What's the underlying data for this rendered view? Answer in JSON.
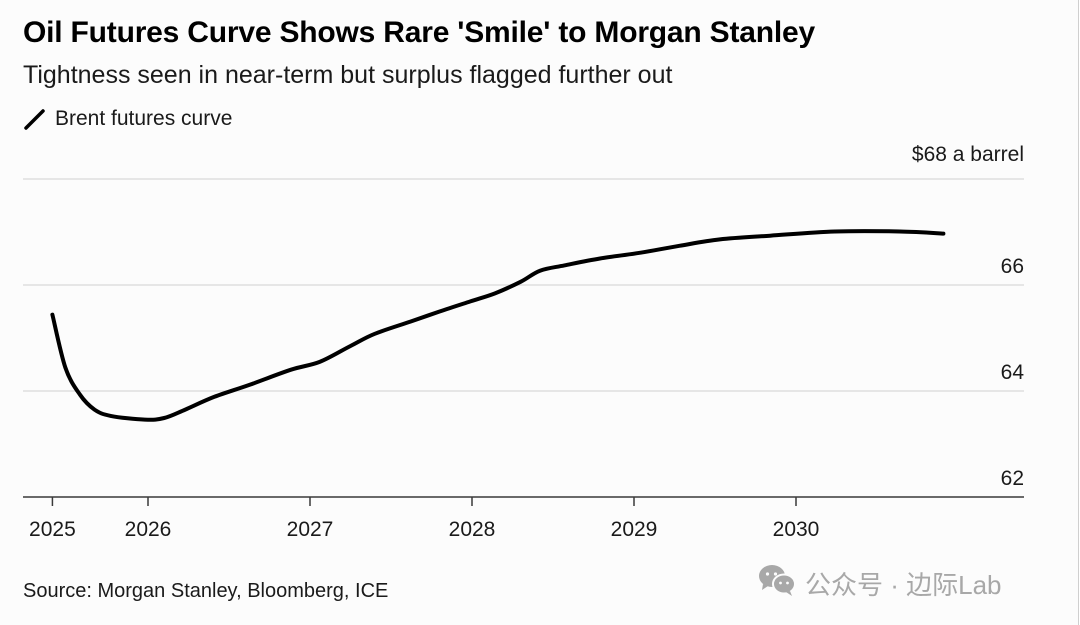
{
  "header": {
    "title": "Oil Futures Curve Shows Rare 'Smile' to Morgan Stanley",
    "subtitle": "Tightness seen in near-term but surplus flagged further out"
  },
  "legend": {
    "items": [
      {
        "label": "Brent futures curve",
        "icon": "line-swatch-icon",
        "color": "#000000"
      }
    ]
  },
  "footer": {
    "source": "Source: Morgan Stanley, Bloomberg, ICE"
  },
  "watermark": {
    "icon": "wechat-icon",
    "text": "公众号 · 边际Lab"
  },
  "chart_data": {
    "type": "line",
    "title": "Oil Futures Curve Shows Rare 'Smile' to Morgan Stanley",
    "subtitle": "Tightness seen in near-term but surplus flagged further out",
    "xlabel": "",
    "ylabel": "$ a barrel",
    "y_unit_label": "$68 a barrel",
    "ylim": [
      62,
      68
    ],
    "yticks": [
      62,
      64,
      66,
      68
    ],
    "ytick_labels": [
      "62",
      "64",
      "66",
      "$68 a barrel"
    ],
    "y_axis_side": "right",
    "xlim": [
      2025.42,
      2031.25
    ],
    "xticks": [
      2025.41,
      2026,
      2027,
      2028,
      2029,
      2030
    ],
    "xtick_labels": [
      "2025",
      "2026",
      "2027",
      "2028",
      "2029",
      "2030"
    ],
    "grid": "horizontal",
    "legend_position": "top-left",
    "source": "Source: Morgan Stanley, Bloomberg, ICE",
    "series": [
      {
        "name": "Brent futures curve",
        "color": "#000000",
        "x": [
          2025.41,
          2025.49,
          2025.58,
          2025.67,
          2025.77,
          2025.98,
          2026.1,
          2026.23,
          2026.41,
          2026.63,
          2026.88,
          2027.06,
          2027.25,
          2027.4,
          2027.62,
          2027.8,
          2027.99,
          2028.14,
          2028.3,
          2028.42,
          2028.57,
          2028.79,
          2029.04,
          2029.28,
          2029.53,
          2029.84,
          2030.24,
          2030.64,
          2030.91
        ],
        "values": [
          65.44,
          64.44,
          63.93,
          63.65,
          63.53,
          63.46,
          63.49,
          63.65,
          63.89,
          64.12,
          64.4,
          64.55,
          64.85,
          65.08,
          65.31,
          65.5,
          65.69,
          65.84,
          66.06,
          66.27,
          66.37,
          66.5,
          66.61,
          66.74,
          66.86,
          66.93,
          67.01,
          67.01,
          66.97
        ]
      }
    ]
  }
}
